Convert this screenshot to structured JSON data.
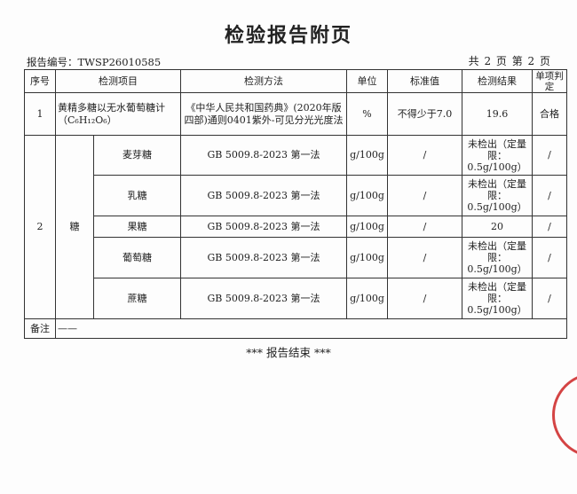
{
  "title": "检验报告附页",
  "report_no": "报告编号：TWSP26010585",
  "page_info": "共 2 页 第 2 页",
  "headers": [
    "序号",
    "检测项目",
    "检测方法",
    "单位",
    "标准值",
    "检测结果",
    "单项判定"
  ],
  "row1": {
    "no": "1",
    "item": "黄精多糖以无水葡萄糖计（C₆H₁₂O₆）",
    "method": "《中华人民共和国药典》(2020年版四部)通则0401紫外-可见分光光度法",
    "unit": "%",
    "standard": "不得少于7.0",
    "result": "19.6",
    "judgement": "合格"
  },
  "row2": {
    "no": "2",
    "group": "糖",
    "items": [
      {
        "name": "麦芽糖",
        "method": "GB 5009.8-2023 第一法",
        "unit": "g/100g",
        "standard": "/",
        "result": "未检出（定量限：0.5g/100g）",
        "judgement": "/"
      },
      {
        "name": "乳糖",
        "method": "GB 5009.8-2023 第一法",
        "unit": "g/100g",
        "standard": "/",
        "result": "未检出（定量限：0.5g/100g）",
        "judgement": "/"
      },
      {
        "name": "果糖",
        "method": "GB 5009.8-2023 第一法",
        "unit": "g/100g",
        "standard": "/",
        "result": "20",
        "judgement": "/"
      },
      {
        "name": "葡萄糖",
        "method": "GB 5009.8-2023 第一法",
        "unit": "g/100g",
        "standard": "/",
        "result": "未检出（定量限：0.5g/100g）",
        "judgement": "/"
      },
      {
        "name": "蔗糖",
        "method": "GB 5009.8-2023 第一法",
        "unit": "g/100g",
        "standard": "/",
        "result": "未检出（定量限：0.5g/100g）",
        "judgement": "/"
      }
    ]
  },
  "remark_label": "备注",
  "remark_value": "——",
  "end_text": "*** 报告结束 ***",
  "stamp_color": "#d44444"
}
